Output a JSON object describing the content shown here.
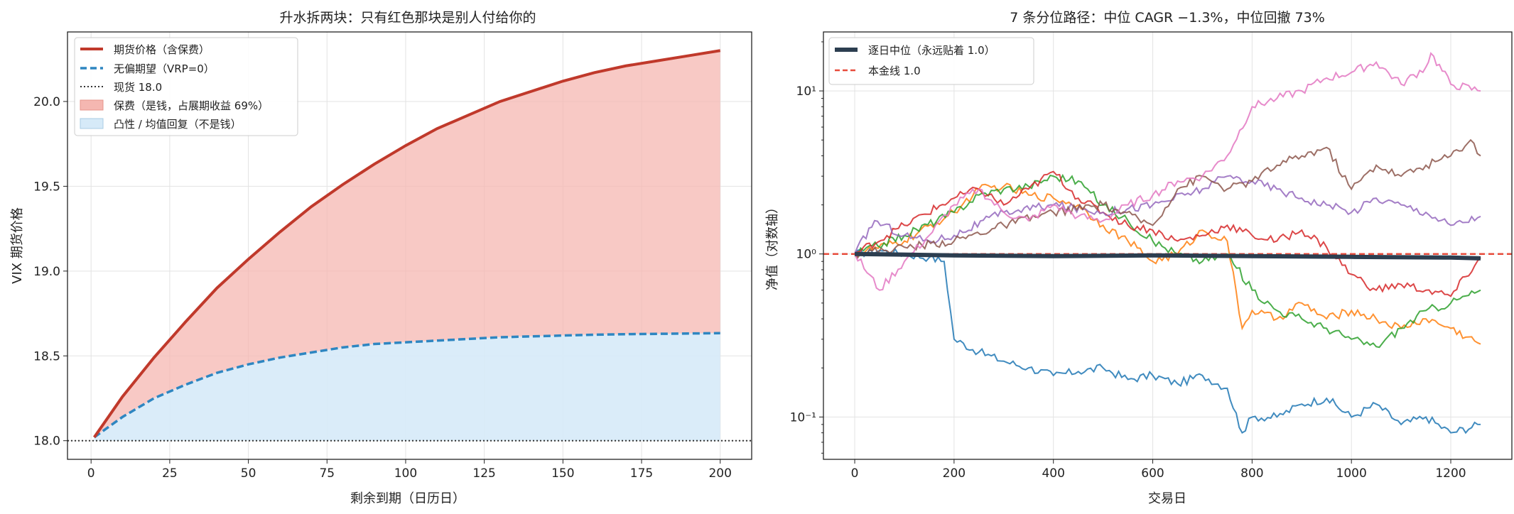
{
  "chart_data": [
    {
      "type": "area",
      "title": "升水拆两块：只有红色那块是别人付给你的",
      "xlabel": "剩余到期（日历日）",
      "ylabel": "VIX 期货价格",
      "xlim": [
        -7.5,
        210
      ],
      "ylim": [
        17.89,
        20.41
      ],
      "x_ticks": [
        0,
        25,
        50,
        75,
        100,
        125,
        150,
        175,
        200
      ],
      "y_ticks": [
        18.0,
        18.5,
        19.0,
        19.5,
        20.0
      ],
      "grid": true,
      "legend_position": "upper-left",
      "legend": [
        "期货价格（含保费）",
        "无偏期望（VRP=0）",
        "现货 18.0",
        "保费（是钱，占展期收益 69%）",
        "凸性 / 均值回复（不是钱）"
      ],
      "series": [
        {
          "name": "期货价格（含保费）",
          "style": "solid",
          "color": "#c0392b",
          "x": [
            1,
            10,
            20,
            30,
            40,
            50,
            60,
            70,
            80,
            90,
            100,
            110,
            120,
            130,
            140,
            150,
            160,
            170,
            180,
            190,
            200
          ],
          "values": [
            18.02,
            18.26,
            18.49,
            18.7,
            18.9,
            19.07,
            19.23,
            19.38,
            19.51,
            19.63,
            19.74,
            19.84,
            19.92,
            20.0,
            20.06,
            20.12,
            20.17,
            20.21,
            20.24,
            20.27,
            20.3
          ]
        },
        {
          "name": "无偏期望（VRP=0）",
          "style": "dashed",
          "color": "#2e86c1",
          "x": [
            1,
            10,
            20,
            30,
            40,
            50,
            60,
            70,
            80,
            90,
            100,
            110,
            120,
            130,
            140,
            150,
            160,
            170,
            180,
            190,
            200
          ],
          "values": [
            18.02,
            18.14,
            18.25,
            18.33,
            18.4,
            18.45,
            18.49,
            18.52,
            18.55,
            18.57,
            18.58,
            18.59,
            18.6,
            18.61,
            18.615,
            18.62,
            18.625,
            18.628,
            18.63,
            18.632,
            18.634
          ]
        },
        {
          "name": "现货 18.0",
          "style": "dotted",
          "color": "#333333",
          "value": 18.0
        }
      ],
      "fills": [
        {
          "name": "保费（是钱，占展期收益 69%）",
          "between": [
            "期货价格（含保费）",
            "无偏期望（VRP=0）"
          ],
          "color": "#f5b7b1"
        },
        {
          "name": "凸性 / 均值回复（不是钱）",
          "between": [
            "无偏期望（VRP=0）",
            "现货 18.0"
          ],
          "color": "#d6eaf8"
        }
      ]
    },
    {
      "type": "line",
      "title": "7 条分位路径：中位 CAGR −1.3%，中位回撤 73%",
      "xlabel": "交易日",
      "ylabel": "净值（对数轴）",
      "yscale": "log",
      "xlim": [
        -63,
        1323
      ],
      "ylim": [
        0.055,
        23
      ],
      "x_ticks": [
        0,
        200,
        400,
        600,
        800,
        1000,
        1200
      ],
      "y_ticks": [
        0.1,
        1,
        10
      ],
      "y_tick_labels": [
        "10⁻¹",
        "10⁰",
        "10¹"
      ],
      "grid": true,
      "legend_position": "upper-left",
      "legend": [
        "逐日中位（永远贴着 1.0）",
        "本金线 1.0"
      ],
      "series": [
        {
          "name": "逐日中位（永远贴着 1.0）",
          "style": "solid-thick",
          "color": "#2c3e50",
          "x": [
            0,
            200,
            400,
            600,
            800,
            1000,
            1200,
            1260
          ],
          "values": [
            1.0,
            0.98,
            0.97,
            0.98,
            0.97,
            0.96,
            0.95,
            0.94
          ]
        },
        {
          "name": "本金线 1.0",
          "style": "dashed",
          "color": "#e74c3c",
          "value": 1.0
        },
        {
          "color": "#1f77b4",
          "x": [
            0,
            50,
            100,
            150,
            180,
            200,
            250,
            300,
            350,
            400,
            450,
            500,
            550,
            600,
            650,
            700,
            750,
            780,
            800,
            850,
            900,
            950,
            1000,
            1050,
            1100,
            1150,
            1200,
            1260
          ],
          "values": [
            1.0,
            1.05,
            1.0,
            0.95,
            0.9,
            0.3,
            0.25,
            0.22,
            0.2,
            0.18,
            0.19,
            0.2,
            0.17,
            0.18,
            0.16,
            0.18,
            0.15,
            0.08,
            0.1,
            0.1,
            0.12,
            0.13,
            0.1,
            0.12,
            0.09,
            0.1,
            0.08,
            0.09
          ]
        },
        {
          "color": "#ff7f0e",
          "x": [
            0,
            100,
            200,
            250,
            300,
            350,
            400,
            450,
            500,
            550,
            600,
            650,
            700,
            750,
            780,
            800,
            850,
            900,
            950,
            1000,
            1050,
            1100,
            1150,
            1200,
            1260
          ],
          "values": [
            1.0,
            1.2,
            1.8,
            2.5,
            2.6,
            2.3,
            2.2,
            2.0,
            1.5,
            1.2,
            0.9,
            1.0,
            1.4,
            1.2,
            0.35,
            0.45,
            0.4,
            0.5,
            0.4,
            0.45,
            0.4,
            0.35,
            0.4,
            0.35,
            0.28
          ]
        },
        {
          "color": "#2ca02c",
          "x": [
            0,
            100,
            200,
            250,
            300,
            350,
            400,
            450,
            500,
            550,
            600,
            650,
            700,
            750,
            800,
            850,
            900,
            950,
            1000,
            1050,
            1100,
            1150,
            1200,
            1260
          ],
          "values": [
            1.0,
            1.3,
            1.8,
            2.3,
            2.5,
            2.6,
            3.0,
            2.8,
            2.0,
            1.6,
            1.2,
            1.0,
            0.9,
            1.0,
            0.6,
            0.45,
            0.4,
            0.35,
            0.3,
            0.27,
            0.35,
            0.45,
            0.5,
            0.6
          ]
        },
        {
          "color": "#d62728",
          "x": [
            0,
            100,
            200,
            250,
            300,
            350,
            400,
            450,
            500,
            550,
            600,
            650,
            700,
            750,
            800,
            850,
            900,
            950,
            1000,
            1050,
            1100,
            1150,
            1200,
            1260
          ],
          "values": [
            1.0,
            1.5,
            2.2,
            2.5,
            2.0,
            2.5,
            3.2,
            2.2,
            1.8,
            1.5,
            1.4,
            1.2,
            1.3,
            1.5,
            1.3,
            1.2,
            1.4,
            1.1,
            0.75,
            0.6,
            0.65,
            0.6,
            0.55,
            0.95
          ]
        },
        {
          "color": "#9467bd",
          "x": [
            0,
            40,
            100,
            150,
            200,
            300,
            400,
            500,
            600,
            700,
            750,
            800,
            850,
            900,
            950,
            1000,
            1050,
            1100,
            1150,
            1200,
            1260
          ],
          "values": [
            1.0,
            1.6,
            1.3,
            1.2,
            1.3,
            1.8,
            2.0,
            1.8,
            2.0,
            2.5,
            3.0,
            2.8,
            2.5,
            2.2,
            2.0,
            1.8,
            2.2,
            2.0,
            1.8,
            1.5,
            1.7
          ]
        },
        {
          "color": "#8c564b",
          "x": [
            0,
            100,
            200,
            300,
            400,
            500,
            600,
            650,
            700,
            750,
            800,
            850,
            900,
            950,
            1000,
            1050,
            1100,
            1150,
            1200,
            1240,
            1260
          ],
          "values": [
            1.0,
            1.1,
            1.2,
            1.5,
            1.8,
            2.0,
            1.5,
            2.5,
            3.0,
            2.5,
            2.8,
            3.5,
            4.0,
            4.5,
            2.5,
            3.5,
            3.0,
            3.5,
            4.0,
            5.0,
            4.0
          ]
        },
        {
          "color": "#e377c2",
          "x": [
            0,
            50,
            100,
            150,
            200,
            250,
            300,
            350,
            400,
            450,
            500,
            550,
            600,
            650,
            700,
            750,
            800,
            850,
            900,
            950,
            1000,
            1050,
            1100,
            1150,
            1160,
            1200,
            1260
          ],
          "values": [
            1.0,
            0.6,
            0.9,
            1.3,
            2.0,
            2.5,
            1.8,
            1.6,
            2.0,
            1.7,
            1.6,
            2.0,
            2.3,
            2.8,
            3.0,
            4.0,
            8.0,
            9.0,
            10.0,
            12.0,
            13.0,
            15.0,
            11.0,
            14.0,
            17.0,
            11.0,
            10.0
          ]
        }
      ]
    }
  ]
}
